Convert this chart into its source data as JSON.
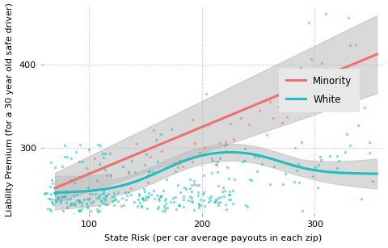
{
  "xlabel": "State Risk (per car average payouts in each zip)",
  "ylabel": "Liability Premium (for a 30 year old safe driver)",
  "xlim": [
    60,
    360
  ],
  "ylim": [
    222,
    470
  ],
  "xticks": [
    100,
    200,
    300
  ],
  "yticks": [
    300,
    400
  ],
  "minority_color": "#F07070",
  "white_color": "#20BEBE",
  "ci_color": "#BBBBBB",
  "background_color": "#FFFFFF",
  "panel_background": "#FFFFFF",
  "grid_color": "#CCCCCC",
  "legend_labels": [
    "Minority",
    "White"
  ],
  "legend_bg": "#E8E8E8",
  "point_alpha": 0.55,
  "point_size": 6
}
